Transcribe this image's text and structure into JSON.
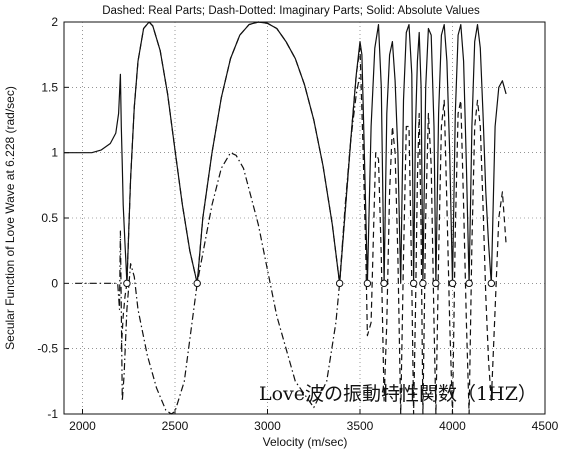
{
  "chart_data": {
    "type": "line",
    "title": "Dashed: Real Parts;  Dash-Dotted: Imaginary Parts;  Solid: Absolute Values",
    "xlabel": "Velocity (m/sec)",
    "ylabel": "Secular Function of Love Wave at 6.228 (rad/sec)",
    "annotation": "Love波の振動特性関数（1HZ）",
    "xlim": [
      1900,
      4500
    ],
    "ylim": [
      -1,
      2
    ],
    "xticks": [
      2000,
      2500,
      3000,
      3500,
      4000,
      4500
    ],
    "yticks": [
      -1,
      -0.5,
      0,
      0.5,
      1,
      1.5,
      2
    ],
    "grid": "dotted",
    "root_markers_x": [
      2240,
      2620,
      3390,
      3540,
      3630,
      3790,
      3840,
      3910,
      4000,
      4090,
      4210
    ],
    "series": [
      {
        "style": "solid",
        "x": [
          1900,
          2050,
          2100,
          2150,
          2180,
          2195,
          2200,
          2205,
          2210,
          2215,
          2220,
          2225,
          2230,
          2235,
          2240,
          2260,
          2280,
          2300,
          2330,
          2360,
          2380,
          2420,
          2460,
          2500,
          2540,
          2580,
          2620,
          2650,
          2700,
          2750,
          2800,
          2850,
          2900,
          2950,
          3000,
          3050,
          3100,
          3150,
          3200,
          3250,
          3300,
          3350,
          3390,
          3420,
          3450,
          3480,
          3500,
          3510,
          3520,
          3530,
          3540,
          3560,
          3580,
          3600,
          3615,
          3630,
          3645,
          3660,
          3675,
          3690,
          3705,
          3720,
          3735,
          3750,
          3765,
          3780,
          3790,
          3800,
          3810,
          3820,
          3830,
          3840,
          3855,
          3870,
          3885,
          3900,
          3910,
          3925,
          3940,
          3955,
          3970,
          3985,
          4000,
          4015,
          4030,
          4045,
          4060,
          4075,
          4090,
          4105,
          4120,
          4135,
          4150,
          4165,
          4180,
          4195,
          4210,
          4230,
          4250,
          4270,
          4290
        ],
        "y": [
          1.0,
          1.0,
          1.02,
          1.07,
          1.15,
          1.3,
          1.45,
          1.6,
          1.2,
          0.9,
          0.6,
          0.45,
          0.3,
          0.15,
          0.0,
          0.8,
          1.35,
          1.7,
          1.95,
          2.0,
          1.97,
          1.78,
          1.45,
          1.02,
          0.6,
          0.25,
          0.0,
          0.5,
          1.0,
          1.42,
          1.72,
          1.9,
          1.98,
          2.0,
          1.99,
          1.95,
          1.85,
          1.72,
          1.52,
          1.25,
          0.9,
          0.45,
          0.0,
          0.55,
          1.1,
          1.6,
          1.85,
          1.75,
          1.2,
          0.6,
          0.0,
          1.2,
          1.8,
          1.98,
          1.5,
          0.0,
          1.3,
          1.75,
          1.85,
          1.55,
          1.0,
          0.0,
          1.4,
          1.92,
          1.98,
          1.6,
          0.0,
          1.2,
          1.7,
          1.92,
          1.5,
          0.0,
          1.5,
          1.95,
          1.9,
          1.2,
          0.0,
          1.3,
          1.9,
          1.98,
          1.7,
          1.0,
          0.0,
          1.3,
          1.9,
          1.98,
          1.7,
          0.9,
          0.0,
          1.2,
          1.85,
          1.98,
          1.8,
          1.3,
          0.7,
          0.3,
          0.0,
          1.2,
          1.5,
          1.55,
          1.45
        ]
      },
      {
        "style": "dashed",
        "x": [
          2210,
          2220,
          2230,
          2240,
          2260,
          2280,
          2300,
          2330,
          2360,
          2380,
          2420,
          2460,
          2500,
          2540,
          2580,
          2620,
          2650,
          2700,
          2750,
          2800,
          2850,
          2900,
          2950,
          3000,
          3050,
          3100,
          3150,
          3200,
          3250,
          3300,
          3350,
          3390,
          3420,
          3450,
          3480,
          3500,
          3515,
          3530,
          3540,
          3560,
          3575,
          3585,
          3600,
          3615,
          3630,
          3645,
          3660,
          3675,
          3690,
          3705,
          3720,
          3735,
          3750,
          3765,
          3780,
          3790,
          3800,
          3810,
          3820,
          3830,
          3840,
          3855,
          3870,
          3885,
          3900,
          3910,
          3925,
          3940,
          3955,
          3970,
          3985,
          4000,
          4015,
          4030,
          4045,
          4060,
          4075,
          4090,
          4105,
          4120,
          4135,
          4150,
          4165,
          4180,
          4195,
          4210,
          4230,
          4250,
          4270,
          4290
        ],
        "y": [
          -0.5,
          -0.25,
          -0.1,
          0.0,
          0.8,
          1.35,
          1.7,
          1.95,
          2.0,
          1.97,
          1.78,
          1.45,
          1.02,
          0.6,
          0.25,
          0.0,
          0.5,
          1.0,
          1.42,
          1.72,
          1.9,
          1.98,
          2.0,
          1.99,
          1.95,
          1.85,
          1.72,
          1.52,
          1.25,
          0.9,
          0.45,
          0.0,
          0.55,
          1.1,
          1.6,
          1.8,
          1.1,
          0.3,
          -0.4,
          -0.3,
          0.5,
          1.0,
          0.95,
          0.2,
          -0.9,
          -0.3,
          0.7,
          1.2,
          1.0,
          0.2,
          -1.0,
          0.2,
          1.2,
          1.2,
          0.0,
          -1.0,
          -0.2,
          0.8,
          1.3,
          0.4,
          -1.0,
          0.5,
          1.3,
          0.9,
          -0.3,
          -1.0,
          0.2,
          1.2,
          1.4,
          0.6,
          -0.3,
          -1.0,
          0.4,
          1.3,
          1.4,
          0.6,
          -0.3,
          -1.0,
          0.3,
          1.2,
          1.4,
          1.2,
          0.6,
          -0.1,
          -0.6,
          -0.9,
          -0.2,
          0.5,
          0.7,
          0.3
        ]
      },
      {
        "style": "dash-dot",
        "x": [
          1960,
          2050,
          2150,
          2190,
          2200,
          2205,
          2210,
          2215,
          2225,
          2240,
          2260,
          2280,
          2300,
          2350,
          2400,
          2450,
          2480,
          2500,
          2550,
          2620,
          2700,
          2750,
          2800,
          2830,
          2870,
          2950,
          3050,
          3150,
          3250,
          3320,
          3370,
          3390,
          3420,
          3450,
          3480,
          3500
        ],
        "y": [
          0.0,
          0.0,
          0.0,
          0.0,
          -0.2,
          0.4,
          -0.2,
          -0.9,
          -0.7,
          -0.2,
          0.15,
          0.05,
          -0.2,
          -0.55,
          -0.8,
          -0.97,
          -1.0,
          -0.98,
          -0.75,
          0.0,
          0.6,
          0.88,
          1.0,
          0.98,
          0.88,
          0.45,
          -0.25,
          -0.75,
          -0.95,
          -0.75,
          -0.3,
          0.0,
          0.6,
          1.1,
          1.45,
          1.6
        ]
      }
    ]
  }
}
